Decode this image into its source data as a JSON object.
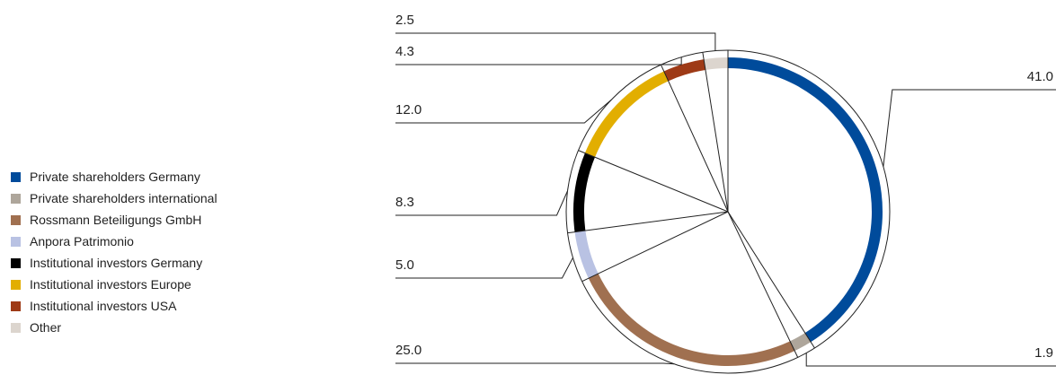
{
  "chart_data": {
    "type": "pie",
    "title": "",
    "legend_position": "left",
    "categories": [
      "Private shareholders Germany",
      "Private shareholders international",
      "Rossmann Beteiligungs GmbH",
      "Anpora Patrimonio",
      "Institutional investors Germany",
      "Institutional investors Europe",
      "Institutional investors USA",
      "Other"
    ],
    "values": [
      41.0,
      1.9,
      25.0,
      5.0,
      8.3,
      12.0,
      4.3,
      2.5
    ],
    "value_labels": [
      "41.0",
      "1.9",
      "25.0",
      "5.0",
      "8.3",
      "12.0",
      "4.3",
      "2.5"
    ],
    "colors": [
      "#004b9b",
      "#aea69b",
      "#a07050",
      "#b9c2e3",
      "#000000",
      "#e2ae00",
      "#9e3a16",
      "#dcd5ce"
    ]
  }
}
